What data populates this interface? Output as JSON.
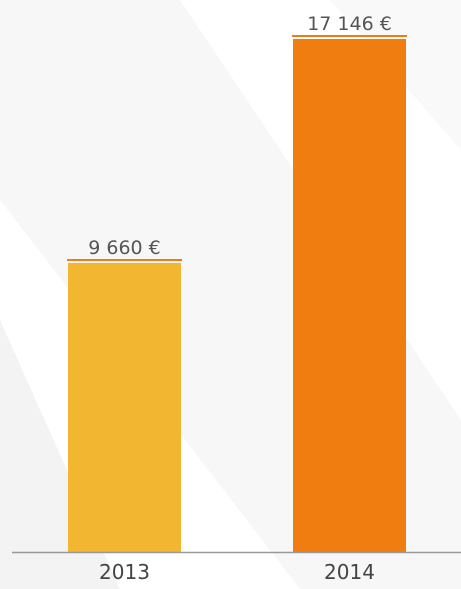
{
  "chart_data": {
    "type": "bar",
    "categories": [
      "2013",
      "2014"
    ],
    "values": [
      9660,
      17146
    ],
    "value_labels": [
      "9 660 €",
      "17 146 €"
    ],
    "colors": [
      "#f2b630",
      "#f07d0f"
    ]
  }
}
